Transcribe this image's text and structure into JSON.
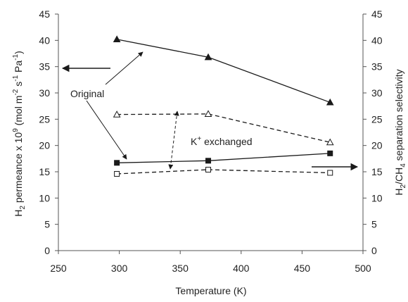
{
  "chart_data": {
    "type": "line",
    "x_axis": {
      "label": "Temperature (K)",
      "range": [
        250,
        500
      ],
      "ticks": [
        250,
        300,
        350,
        400,
        450,
        500
      ]
    },
    "y_axis_left": {
      "label_prefix": "H",
      "label_sub": "2",
      "label_mid": " permeance x 10",
      "label_sup": "9",
      "label_unit_open": " (mol m",
      "label_unit_sup1": "-2",
      "label_unit_s": " s",
      "label_unit_sup2": "-1",
      "label_unit_pa": " Pa",
      "label_unit_sup3": "-1",
      "label_close": ")",
      "range": [
        0,
        45
      ],
      "ticks": [
        0,
        5,
        10,
        15,
        20,
        25,
        30,
        35,
        40,
        45
      ]
    },
    "y_axis_right": {
      "label_h": "H",
      "label_sub1": "2",
      "label_ch": "/CH",
      "label_sub2": "4",
      "label_rest": " separation selectivity",
      "range": [
        0,
        45
      ],
      "ticks": [
        0,
        5,
        10,
        15,
        20,
        25,
        30,
        35,
        40,
        45
      ]
    },
    "series": [
      {
        "key": "orig_perm",
        "x": [
          298,
          373,
          473
        ],
        "y": [
          40.2,
          36.8,
          28.2
        ],
        "style": "solid",
        "marker": "triangle-filled"
      },
      {
        "key": "orig_sel",
        "x": [
          298,
          373,
          473
        ],
        "y": [
          25.9,
          26.0,
          20.6
        ],
        "style": "dashed",
        "marker": "triangle-open"
      },
      {
        "key": "k_perm",
        "x": [
          298,
          373,
          473
        ],
        "y": [
          16.7,
          17.1,
          18.5
        ],
        "style": "solid",
        "marker": "square-filled"
      },
      {
        "key": "k_sel",
        "x": [
          298,
          373,
          473
        ],
        "y": [
          14.6,
          15.4,
          14.8
        ],
        "style": "dashed",
        "marker": "square-open"
      }
    ],
    "annotations": {
      "original": "Original",
      "k_exchanged_k": "K",
      "k_exchanged_sup": "+",
      "k_exchanged_rest": " exchanged"
    },
    "colors": {
      "line": "#1a1a1a",
      "axis": "#555555",
      "text": "#222222"
    }
  }
}
